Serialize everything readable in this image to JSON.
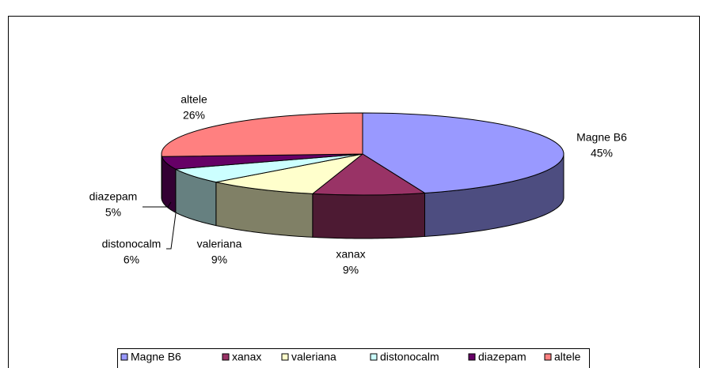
{
  "chart_data": {
    "type": "pie",
    "categories": [
      "Magne B6",
      "xanax",
      "valeriana",
      "distonocalm",
      "diazepam",
      "altele"
    ],
    "values": [
      45,
      9,
      9,
      6,
      5,
      26
    ],
    "value_labels": [
      "45%",
      "9%",
      "9%",
      "6%",
      "5%",
      "26%"
    ],
    "colors": [
      "#9999ff",
      "#993366",
      "#ffffcc",
      "#ccffff",
      "#660066",
      "#ff8080"
    ],
    "side_colors": [
      "#4d4d80",
      "#4d1a33",
      "#808066",
      "#668080",
      "#330033",
      "#804040"
    ],
    "legend": "bottom"
  }
}
